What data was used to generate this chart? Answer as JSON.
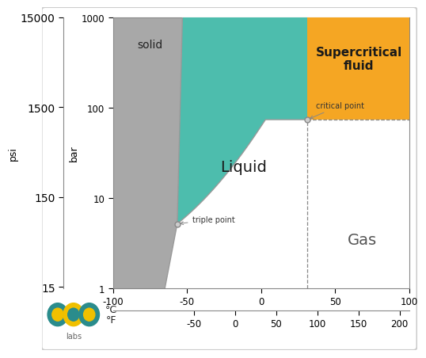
{
  "colors": {
    "solid": "#a8a8a8",
    "liquid": "#4dbdad",
    "supercritical": "#f5a623",
    "gas": "#ffffff",
    "border": "#999999"
  },
  "psi_ticks": [
    15,
    150,
    1500,
    15000
  ],
  "bar_ticks": [
    1,
    10,
    100,
    1000
  ],
  "celsius_ticks": [
    -100,
    -50,
    0,
    50,
    100
  ],
  "fahrenheit_ticks": [
    -50,
    0,
    50,
    100,
    150,
    200
  ],
  "triple_point_C": -56.6,
  "triple_point_bar": 5.18,
  "critical_point_C": 31.1,
  "critical_point_bar": 73.8,
  "T_min": -100,
  "T_max": 100,
  "P_min": 1,
  "P_max": 1000,
  "labels": {
    "solid": "solid",
    "liquid": "Liquid",
    "gas": "Gas",
    "supercritical": "Supercritical\nfluid",
    "triple_point": "triple point",
    "critical_point": "critical point"
  },
  "logo_outer_colors": [
    "#2a8c8c",
    "#f0c000",
    "#2a8c8c"
  ],
  "logo_inner_colors": [
    "#f0c000",
    "#2a8c8c",
    "#f0c000"
  ],
  "logo_text": "labs"
}
